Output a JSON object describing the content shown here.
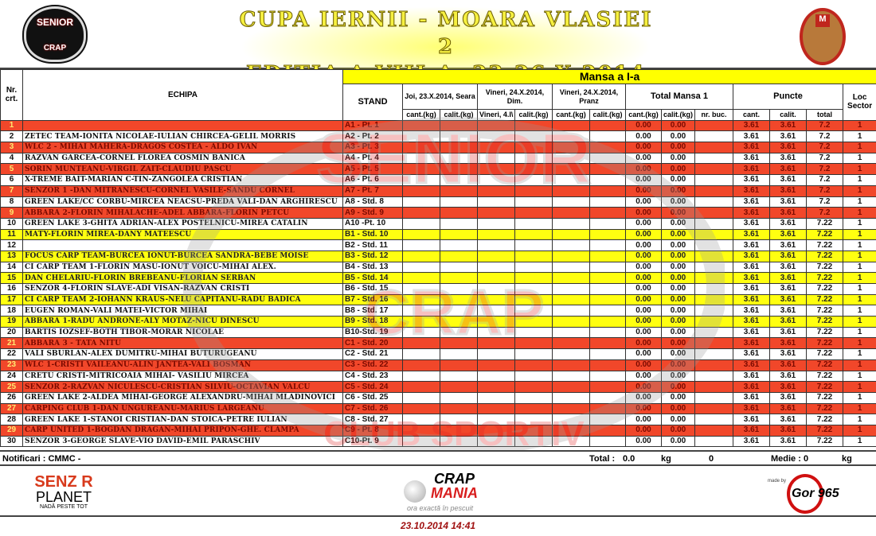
{
  "header": {
    "title_line1": "CUPA IERNII - MOARA VLASIEI 2",
    "title_line2": "EDITIA  A VIII-A, 23-26.X.2014",
    "logo_left_text": "SENIOR",
    "logo_left_sub": "CRAP",
    "logo_right_text": "LACUL MOARA VLASIEI 2"
  },
  "table": {
    "col_nr": "Nr. crt.",
    "col_team": "ECHIPA",
    "col_stand": "STAND",
    "mansa": "Mansa a I-a",
    "sessions": [
      "Joi, 23.X.2014, Seara",
      "Vineri, 24.X.2014, Dim.",
      "Vineri, 24.X.2014, Pranz"
    ],
    "total_mansa": "Total Mansa 1",
    "puncte": "Puncte",
    "loc_sector": "Loc Sector",
    "sub": [
      "cant.(kg)",
      "calit.(kg)",
      "Vineri, 4.I\\",
      "calit.(kg)",
      "cant.(kg)",
      "calit.(kg)",
      "cant.(kg)",
      "calit.(kg)",
      "nr. buc.",
      "cant.",
      "calit.",
      "total"
    ],
    "rows": [
      [
        "1",
        "",
        "A1 - Pt. 1",
        "0.00",
        "0.00",
        "3.61",
        "3.61",
        "7.2",
        "1"
      ],
      [
        "2",
        "ZETEC TEAM-IONITA NICOLAE-IULIAN CHIRCEA-GELIL MORRIS",
        "A2 - Pt. 2",
        "0.00",
        "0.00",
        "3.61",
        "3.61",
        "7.2",
        "1"
      ],
      [
        "3",
        "WLC 2 - MIHAI MAHERA-DRAGOS COSTEA - ALDO IVAN",
        "A3 - Pt. 3",
        "0.00",
        "0.00",
        "3.61",
        "3.61",
        "7.2",
        "1"
      ],
      [
        "4",
        "RAZVAN GARCEA-CORNEL FLOREA COSMIN BANICA",
        "A4 - Pt. 4",
        "0.00",
        "0.00",
        "3.61",
        "3.61",
        "7.2",
        "1"
      ],
      [
        "5",
        "SORIN MUNTEANU-VIRGIL ZAIT-CLAUDIU PASCU",
        "A5 - Pt. 5",
        "0.00",
        "0.00",
        "3.61",
        "3.61",
        "7.2",
        "1"
      ],
      [
        "6",
        "X-TREME BAIT-MARIAN C-TIN-ZANGOLEA CRISTIAN",
        "A6 - Pt. 6",
        "0.00",
        "0.00",
        "3.61",
        "3.61",
        "7.2",
        "1"
      ],
      [
        "7",
        "SENZOR 1 -DAN MITRANESCU-CORNEL VASILE-SANDU CORNEL",
        "A7 - Pt. 7",
        "0.00",
        "0.00",
        "3.61",
        "3.61",
        "7.2",
        "1"
      ],
      [
        "8",
        "GREEN LAKE/CC CORBU-MIRCEA NEACSU-PREDA VALI-DAN ARGHIRESCU",
        "A8 - Std. 8",
        "0.00",
        "0.00",
        "3.61",
        "3.61",
        "7.2",
        "1"
      ],
      [
        "9",
        "ABBARA 2-FLORIN MIHALACHE-ADEL ABBARA-FLORIN PETCU",
        "A9 - Std. 9",
        "0.00",
        "0.00",
        "3.61",
        "3.61",
        "7.2",
        "1"
      ],
      [
        "10",
        "GREEN LAKE 3-GHITA ADRIAN-ALEX POSTELNICU-MIREA CATALIN",
        "A10 -Pt. 10",
        "0.00",
        "0.00",
        "3.61",
        "3.61",
        "7.22",
        "1"
      ],
      [
        "11",
        "MATY-FLORIN MIREA-DANY MATEESCU",
        "B1 - Std. 10",
        "0.00",
        "0.00",
        "3.61",
        "3.61",
        "7.22",
        "1"
      ],
      [
        "12",
        "",
        "B2 - Std. 11",
        "0.00",
        "0.00",
        "3.61",
        "3.61",
        "7.22",
        "1"
      ],
      [
        "13",
        "FOCUS CARP TEAM-BURCEA IONUT-BURCEA SANDRA-BEBE MOISE",
        "B3 - Std. 12",
        "0.00",
        "0.00",
        "3.61",
        "3.61",
        "7.22",
        "1"
      ],
      [
        "14",
        "CI CARP TEAM 1-FLORIN MASU-IONUT VOICU-MIHAI ALEX.",
        "B4 - Std. 13",
        "0.00",
        "0.00",
        "3.61",
        "3.61",
        "7.22",
        "1"
      ],
      [
        "15",
        "DAN CHELARIU-FLORIN BREBEANU-FLORIAN SERBAN",
        "B5 - Std. 14",
        "0.00",
        "0.00",
        "3.61",
        "3.61",
        "7.22",
        "1"
      ],
      [
        "16",
        "SENZOR 4-FLORIN SLAVE-ADI VISAN-RAZVAN CRISTI",
        "B6 - Std. 15",
        "0.00",
        "0.00",
        "3.61",
        "3.61",
        "7.22",
        "1"
      ],
      [
        "17",
        "CI CARP TEAM 2-IOHANN KRAUS-NELU CAPITANU-RADU BADICA",
        "B7 - Std. 16",
        "0.00",
        "0.00",
        "3.61",
        "3.61",
        "7.22",
        "1"
      ],
      [
        "18",
        "EUGEN ROMAN-VALI MATEI-VICTOR MIHAI",
        "B8 - Std. 17",
        "0.00",
        "0.00",
        "3.61",
        "3.61",
        "7.22",
        "1"
      ],
      [
        "19",
        "ABBARA 1-RADU ANDRONE-ALY MOTAZ-NICU DINESCU",
        "B9 - Std. 18",
        "0.00",
        "0.00",
        "3.61",
        "3.61",
        "7.22",
        "1"
      ],
      [
        "20",
        "BARTIS IOZSEF-BOTH TIBOR-MORAR NICOLAE",
        "B10-Std. 19",
        "0.00",
        "0.00",
        "3.61",
        "3.61",
        "7.22",
        "1"
      ],
      [
        "21",
        "ABBARA 3 - TATA NITU",
        "C1 - Std. 20",
        "0.00",
        "0.00",
        "3.61",
        "3.61",
        "7.22",
        "1"
      ],
      [
        "22",
        "VALI SBURLAN-ALEX DUMITRU-MIHAI BUTURUGEANU",
        "C2 - Std. 21",
        "0.00",
        "0.00",
        "3.61",
        "3.61",
        "7.22",
        "1"
      ],
      [
        "23",
        "WLC 1-CRISTI VAILEANU-ALIN JANTEA-VALI BOSMAN",
        "C3 - Std. 22",
        "0.00",
        "0.00",
        "3.61",
        "3.61",
        "7.22",
        "1"
      ],
      [
        "24",
        "CRETU CRISTI-MITRICOAIA MIHAI- VASILIU MIRCEA",
        "C4 - Std. 23",
        "0.00",
        "0.00",
        "3.61",
        "3.61",
        "7.22",
        "1"
      ],
      [
        "25",
        "SENZOR 2-RAZVAN NICULESCU-CRISTIAN SILVIU-OCTAVIAN VALCU",
        "C5 - Std. 24",
        "0.00",
        "0.00",
        "3.61",
        "3.61",
        "7.22",
        "1"
      ],
      [
        "26",
        "GREEN LAKE 2-ALDEA MIHAI-GEORGE ALEXANDRU-MIHAI MLADINOVICI",
        "C6 - Std. 25",
        "0.00",
        "0.00",
        "3.61",
        "3.61",
        "7.22",
        "1"
      ],
      [
        "27",
        "CARPING CLUB 1-DAN UNGUREANU-MARIUS LARGEANU",
        "C7 - Std. 26",
        "0.00",
        "0.00",
        "3.61",
        "3.61",
        "7.22",
        "1"
      ],
      [
        "28",
        "GREEN LAKE 1-STANOI CRISTIAN-DAN STOICA-PETRE IULIAN",
        "C8 - Std. 27",
        "0.00",
        "0.00",
        "3.61",
        "3.61",
        "7.22",
        "1"
      ],
      [
        "29",
        "CARP UNITED 1-BOGDAN DRAGAN-MIHAI PRIPON-GHE. CLAMPA",
        "C9 - Pt. 8",
        "0.00",
        "0.00",
        "3.61",
        "3.61",
        "7.22",
        "1"
      ],
      [
        "30",
        "SENZOR 3-GEORGE SLAVE-VIO DAVID-EMIL PARASCHIV",
        "C10-Pt. 9",
        "0.00",
        "0.00",
        "3.61",
        "3.61",
        "7.22",
        "1"
      ]
    ]
  },
  "colors": {
    "red_row": "#f1472a",
    "yellow_row": "#ffff10",
    "header_yellow": "#ffff00"
  },
  "watermark": {
    "text1": "SENIOR",
    "text2": "CRAP",
    "text3": "CLUB SPORTIV"
  },
  "footer": {
    "notificari": "Notificari : CMMC -",
    "total_label": "Total :",
    "total_value": "0.0",
    "total_unit": "kg",
    "total_count": "0",
    "medie_label": "Medie : 0",
    "medie_unit": "kg"
  },
  "sponsors": {
    "senzor_a": "SENZ R",
    "senzor_b": "PLANET",
    "senzor_c": "NADĂ PESTE TOT",
    "crap_a": "CRAP",
    "crap_b": "MANIA",
    "crap_c": "ora exactă în pescuit",
    "gor_made": "made by",
    "gor": "Gor 965"
  },
  "timestamp": "23.10.2014 14:41"
}
